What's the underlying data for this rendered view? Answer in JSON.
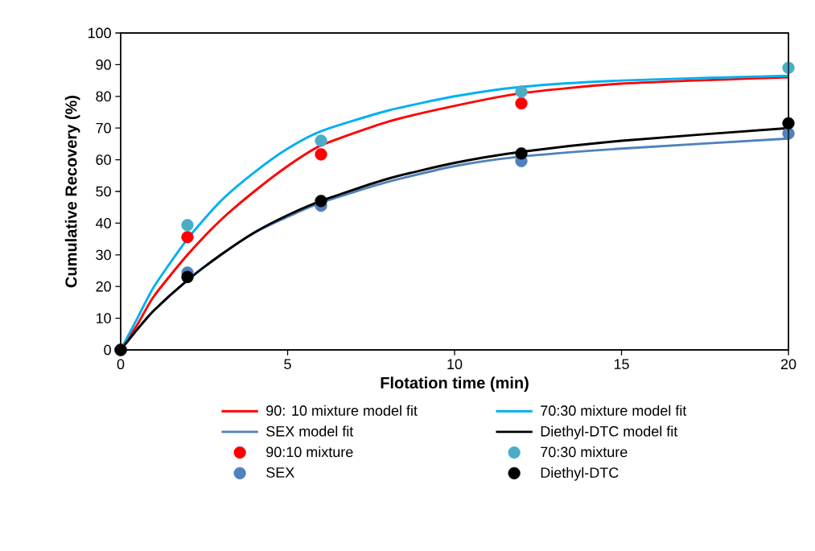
{
  "chart_data": {
    "type": "line",
    "xlabel": "Flotation time (min)",
    "ylabel": "Cumulative Recovery (%)",
    "xlim": [
      0,
      20
    ],
    "ylim": [
      0,
      100
    ],
    "xticks": [
      0,
      5,
      10,
      15,
      20
    ],
    "yticks": [
      0,
      10,
      20,
      30,
      40,
      50,
      60,
      70,
      80,
      90,
      100
    ],
    "grid": false,
    "legend": "bottom",
    "series": [
      {
        "name": "90: 10 mixture model fit",
        "marker": "none",
        "color": "#ff0000",
        "x": [
          0,
          0.5,
          1,
          2,
          3,
          4,
          5,
          6,
          8,
          10,
          12,
          15,
          20
        ],
        "values": [
          0,
          8,
          17,
          30,
          41,
          50,
          58,
          64.5,
          72,
          77,
          81,
          84,
          86
        ]
      },
      {
        "name": "70:30 mixture model fit",
        "marker": "none",
        "color": "#00b0f0",
        "x": [
          0,
          0.5,
          1,
          2,
          3,
          4,
          5,
          6,
          8,
          10,
          12,
          15,
          20
        ],
        "values": [
          0,
          10,
          20,
          35,
          47,
          56,
          63.5,
          69,
          75.5,
          80,
          83,
          85,
          86.5
        ]
      },
      {
        "name": "SEX model fit",
        "marker": "none",
        "color": "#4f81bd",
        "x": [
          0,
          0.5,
          1,
          2,
          3,
          4,
          5,
          6,
          8,
          10,
          12,
          15,
          20
        ],
        "values": [
          0,
          6.5,
          12.5,
          22,
          30,
          37,
          42,
          46.5,
          53,
          58,
          61,
          63.5,
          66.7
        ]
      },
      {
        "name": "Diethyl-DTC model fit",
        "marker": "none",
        "color": "#000000",
        "x": [
          0,
          0.5,
          1,
          2,
          3,
          4,
          5,
          6,
          8,
          10,
          12,
          15,
          20
        ],
        "values": [
          0,
          6.5,
          12.5,
          22,
          30,
          37,
          42.5,
          47,
          54,
          59,
          62.5,
          66,
          70
        ]
      },
      {
        "name": "90:10 mixture",
        "type": "scatter",
        "marker": "circle",
        "color": "#ff0000",
        "x": [
          0,
          2,
          6,
          12
        ],
        "values": [
          0,
          35.6,
          61.7,
          77.8
        ]
      },
      {
        "name": "70:30 mixture",
        "type": "scatter",
        "marker": "circle",
        "color": "#4bacc6",
        "x": [
          0,
          2,
          6,
          12,
          20
        ],
        "values": [
          0,
          39.4,
          66,
          81.5,
          89
        ]
      },
      {
        "name": "SEX",
        "type": "scatter",
        "marker": "circle",
        "color": "#4f81bd",
        "x": [
          0,
          2,
          6,
          12,
          20
        ],
        "values": [
          0,
          24.4,
          45.5,
          59.6,
          68.3
        ]
      },
      {
        "name": "Diethyl-DTC",
        "type": "scatter",
        "marker": "circle",
        "color": "#000000",
        "x": [
          0,
          2,
          6,
          12,
          20
        ],
        "values": [
          0,
          23,
          47,
          62,
          71.5
        ]
      }
    ]
  }
}
